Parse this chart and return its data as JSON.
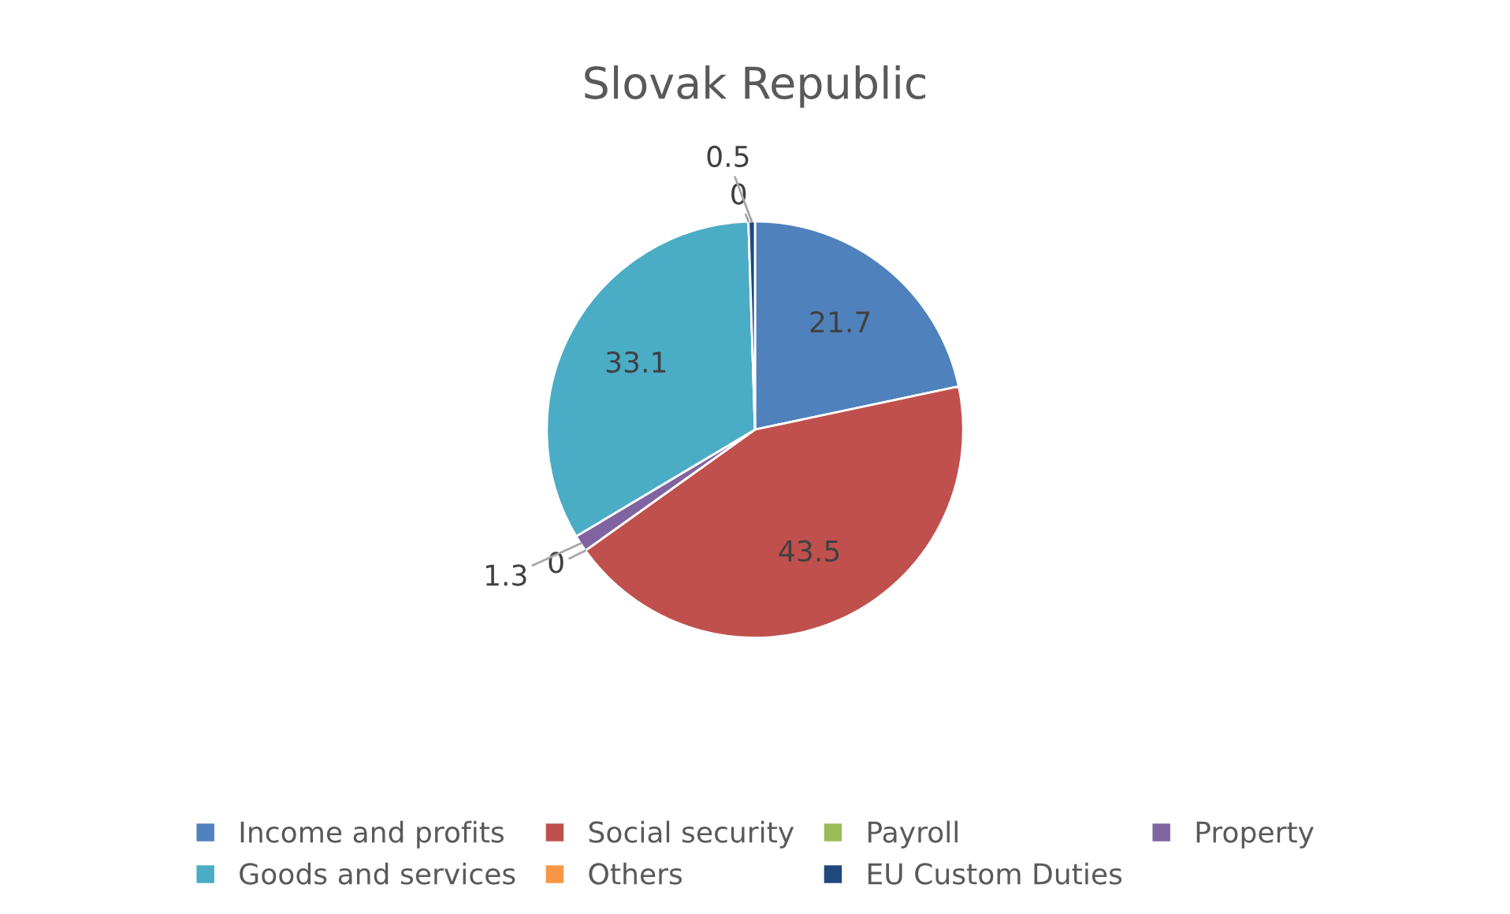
{
  "chart_data": {
    "type": "pie",
    "title": "Slovak Republic",
    "categories": [
      "Income and profits",
      "Social security",
      "Payroll",
      "Property",
      "Goods and services",
      "Others",
      "EU Custom Duties"
    ],
    "values": [
      21.7,
      43.5,
      0,
      1.3,
      33.1,
      0,
      0.5
    ],
    "colors": [
      "#4f81bd",
      "#c0504d",
      "#9bbb59",
      "#8064a2",
      "#4bacc6",
      "#f79646",
      "#1f497d"
    ],
    "value_labels": [
      "21.7",
      "43.5",
      "0",
      "1.3",
      "33.1",
      "0",
      "0.5"
    ],
    "legend": "bottom"
  }
}
